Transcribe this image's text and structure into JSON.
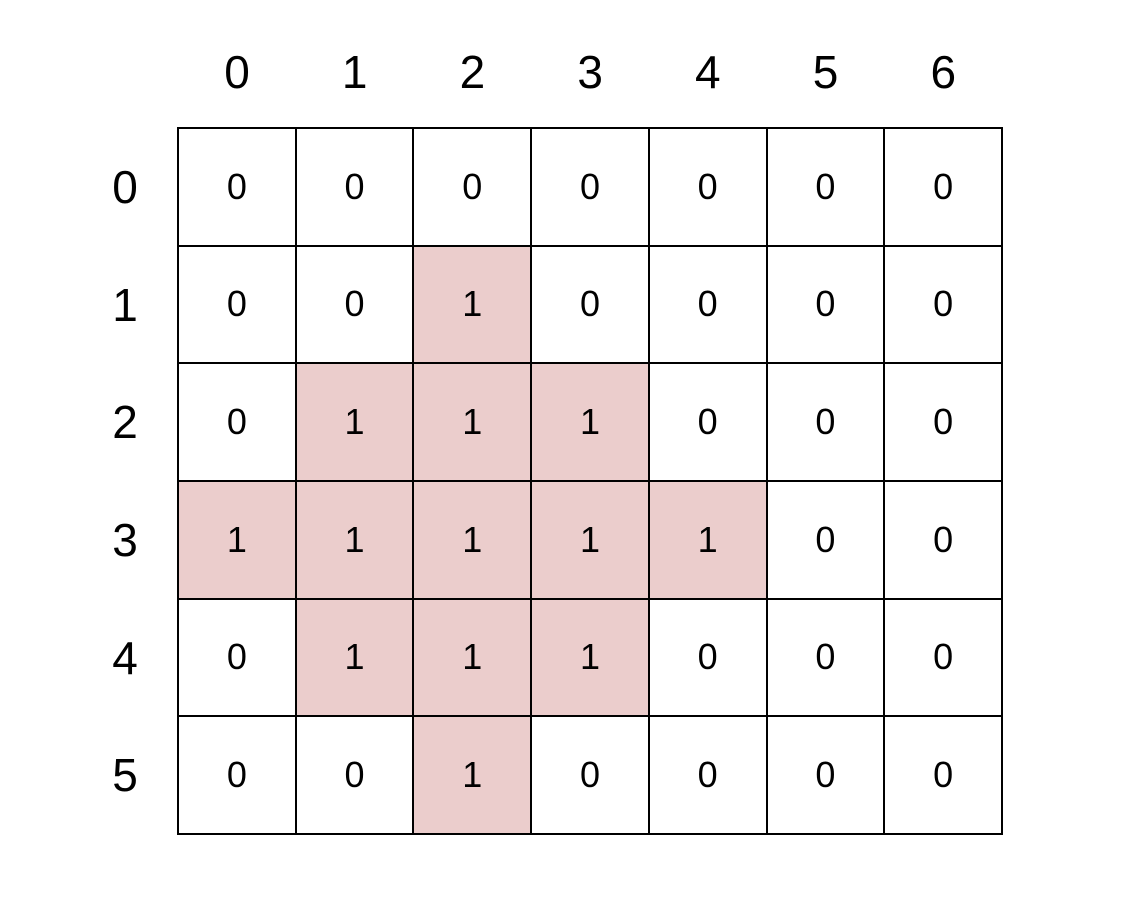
{
  "column_labels": [
    "0",
    "1",
    "2",
    "3",
    "4",
    "5",
    "6"
  ],
  "row_labels": [
    "0",
    "1",
    "2",
    "3",
    "4",
    "5"
  ],
  "grid": [
    [
      0,
      0,
      0,
      0,
      0,
      0,
      0
    ],
    [
      0,
      0,
      1,
      0,
      0,
      0,
      0
    ],
    [
      0,
      1,
      1,
      1,
      0,
      0,
      0
    ],
    [
      1,
      1,
      1,
      1,
      1,
      0,
      0
    ],
    [
      0,
      1,
      1,
      1,
      0,
      0,
      0
    ],
    [
      0,
      0,
      1,
      0,
      0,
      0,
      0
    ]
  ],
  "colors": {
    "highlight": "#ebcdcc",
    "background": "#ffffff",
    "border": "#000000"
  }
}
